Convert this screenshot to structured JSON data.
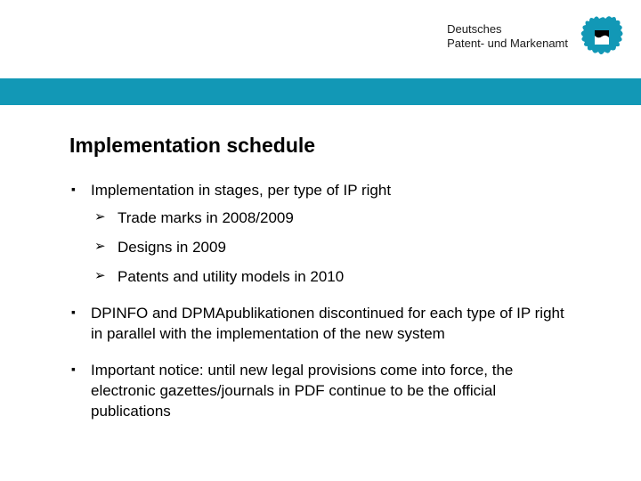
{
  "header": {
    "org_line1": "Deutsches",
    "org_line2": "Patent- und Markenamt",
    "blue_bar_color": "#1298b6",
    "logo_blob_color": "#1298b6"
  },
  "slide": {
    "title": "Implementation schedule",
    "bullets": [
      {
        "text": "Implementation in stages, per type of IP right",
        "sub": [
          "Trade marks in 2008/2009",
          "Designs in 2009",
          "Patents and utility models in 2010"
        ]
      },
      {
        "text": "DPINFO and DPMApublikationen discontinued for each type of IP right in parallel with the implementation of the new system",
        "sub": []
      },
      {
        "text": "Important notice: until new legal provisions come into force, the electronic gazettes/journals in PDF continue to be the official publications",
        "sub": []
      }
    ]
  },
  "style": {
    "title_fontsize": 23,
    "body_fontsize": 17,
    "text_color": "#000000",
    "background_color": "#ffffff"
  }
}
